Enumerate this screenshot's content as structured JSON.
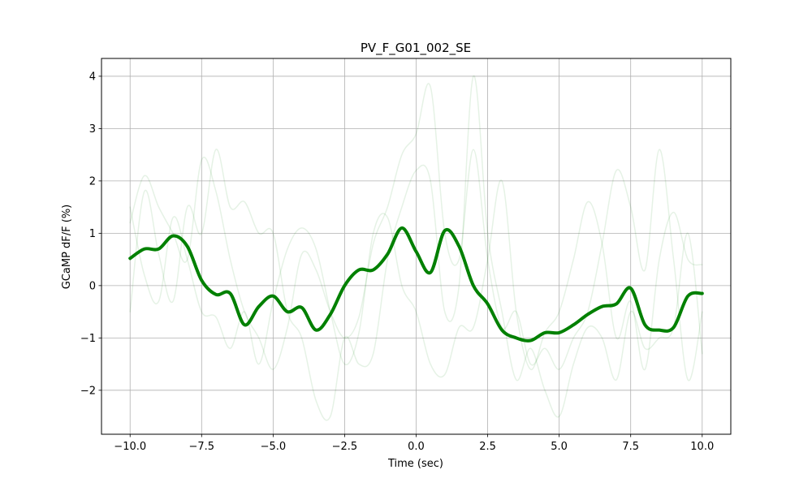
{
  "chart_data": {
    "type": "line",
    "title": "PV_F_G01_002_SE",
    "x_label": "Time (sec)",
    "y_label": "GCaMP dF/F (%)",
    "x": [
      -10,
      -9.5,
      -9,
      -8.5,
      -8,
      -7.5,
      -7,
      -6.5,
      -6,
      -5.5,
      -5,
      -4.5,
      -4,
      -3.5,
      -3,
      -2.5,
      -2,
      -1.5,
      -1,
      -0.5,
      0,
      0.5,
      1,
      1.5,
      2,
      2.5,
      3,
      3.5,
      4,
      4.5,
      5,
      5.5,
      6,
      6.5,
      7,
      7.5,
      8,
      8.5,
      9,
      9.5,
      10
    ],
    "series": [
      {
        "color": "#008000",
        "alpha": 0.1,
        "linewidth": 1.5,
        "values": [
          1.2,
          2.1,
          1.5,
          1.0,
          0.5,
          2.4,
          1.8,
          0.5,
          -0.5,
          -1.0,
          -1.6,
          -0.8,
          0.6,
          0.3,
          -0.5,
          -1.0,
          -0.6,
          0.8,
          1.5,
          2.5,
          2.9,
          3.8,
          1.0,
          0.5,
          2.6,
          0.5,
          -0.8,
          -0.5,
          -1.5,
          -1.2,
          -1.6,
          -1.0,
          -0.5,
          0.8,
          2.2,
          1.5,
          0.3,
          2.6,
          0.5,
          -1.8,
          -0.5
        ]
      },
      {
        "color": "#008000",
        "alpha": 0.1,
        "linewidth": 1.5,
        "values": [
          -0.5,
          1.8,
          0.6,
          -0.3,
          1.5,
          1.0,
          2.6,
          1.5,
          1.6,
          1.0,
          1.0,
          -0.5,
          -1.0,
          -2.2,
          -2.5,
          -1.0,
          -1.5,
          -1.3,
          0.5,
          1.5,
          2.2,
          2.0,
          -0.5,
          0.0,
          4.0,
          1.0,
          -0.5,
          -1.8,
          -1.2,
          -2.0,
          -2.5,
          -1.5,
          -0.8,
          -1.0,
          -1.8,
          -0.5,
          -1.2,
          -1.0,
          -0.8,
          1.0,
          -1.3
        ]
      },
      {
        "color": "#008000",
        "alpha": 0.1,
        "linewidth": 1.5,
        "values": [
          1.5,
          0.2,
          -0.3,
          1.3,
          0.5,
          -0.5,
          -0.6,
          -1.2,
          -0.5,
          -1.5,
          -0.3,
          0.7,
          1.1,
          0.7,
          -0.5,
          -1.5,
          -0.9,
          1.0,
          1.3,
          0.0,
          -0.5,
          -1.5,
          -1.7,
          -0.8,
          -0.8,
          0.5,
          2.0,
          -0.5,
          -1.6,
          -0.9,
          -0.5,
          0.5,
          1.6,
          0.8,
          -1.0,
          -0.3,
          -1.6,
          0.5,
          1.4,
          0.5,
          0.4
        ]
      },
      {
        "color": "#008000",
        "alpha": 1,
        "linewidth": 4,
        "values": [
          0.52,
          0.7,
          0.7,
          0.95,
          0.75,
          0.1,
          -0.17,
          -0.15,
          -0.75,
          -0.4,
          -0.2,
          -0.5,
          -0.42,
          -0.85,
          -0.55,
          0,
          0.3,
          0.3,
          0.6,
          1.1,
          0.65,
          0.25,
          1.05,
          0.75,
          0,
          -0.35,
          -0.85,
          -1.0,
          -1.05,
          -0.9,
          -0.9,
          -0.75,
          -0.55,
          -0.4,
          -0.35,
          -0.05,
          -0.75,
          -0.85,
          -0.8,
          -0.2,
          -0.15
        ]
      }
    ],
    "xlim": [
      -11,
      11
    ],
    "ylim": [
      -2.84,
      4.34
    ],
    "xticks": [
      {
        "value": -10,
        "label": "−10.0"
      },
      {
        "value": -7.5,
        "label": "−7.5"
      },
      {
        "value": -5,
        "label": "−5.0"
      },
      {
        "value": -2.5,
        "label": "−2.5"
      },
      {
        "value": 0,
        "label": "0.0"
      },
      {
        "value": 2.5,
        "label": "2.5"
      },
      {
        "value": 5,
        "label": "5.0"
      },
      {
        "value": 7.5,
        "label": "7.5"
      },
      {
        "value": 10,
        "label": "10.0"
      }
    ],
    "yticks": [
      {
        "value": -2,
        "label": "−2"
      },
      {
        "value": -1,
        "label": "−1"
      },
      0,
      1,
      2,
      3,
      4
    ],
    "grid": true
  }
}
